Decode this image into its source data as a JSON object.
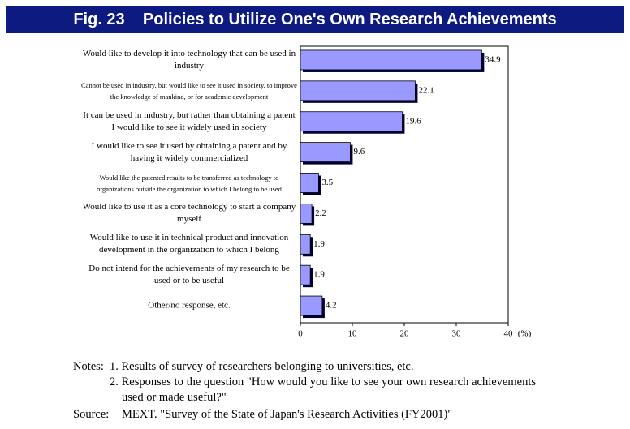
{
  "chart_data": {
    "type": "bar",
    "orientation": "horizontal",
    "title": "Fig. 23    Policies to Utilize One's Own Research Achievements",
    "categories": [
      "Would like to develop it into technology that can be used in industry",
      "Cannot be used in industry, but would like to see it used in society, to improve the knowledge of mankind, or for academic development",
      "It can be used in industry, but rather than obtaining a patent I would like to see it widely used in society",
      "I would like to see it used by obtaining a patent and by having it widely commercialized",
      "Would like the patented results to be transferred as technology to organizations outside the organization to which I belong to be used",
      "Would like to use it as a core technology to start a company myself",
      "Would like to use it in technical product and innovation development in the organization to which I belong",
      "Do not intend for the achievements of my research to be used or to be useful",
      "Other/no response, etc."
    ],
    "values": [
      34.9,
      22.1,
      19.6,
      9.6,
      3.5,
      2.2,
      1.9,
      1.9,
      4.2
    ],
    "color": "#9999ff",
    "xlim": [
      0,
      40
    ],
    "xticks": [
      0,
      10,
      20,
      30,
      40
    ],
    "xlabel": "(%)",
    "grid": false
  },
  "notes": {
    "label": "Notes:",
    "items": [
      "1. Results of survey of researchers belonging to universities, etc.",
      "2. Responses to the question \"How would you like to see your own research achievements used or made useful?\""
    ],
    "source_label": "Source:",
    "source": "MEXT. \"Survey of the State of Japan's Research Activities (FY2001)\""
  }
}
